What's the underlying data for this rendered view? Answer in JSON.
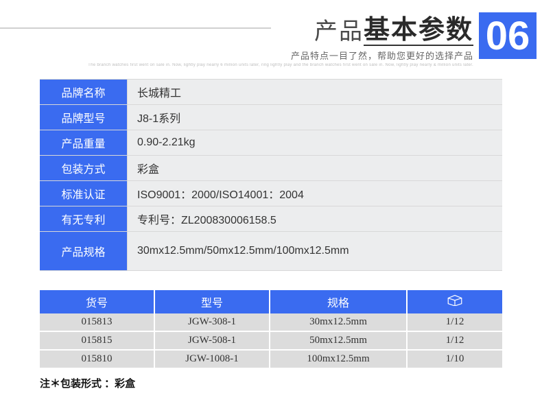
{
  "header": {
    "title_light": "产品",
    "title_bold": "基本参数",
    "subtitle": "产品特点一目了然，帮助您更好的选择产品",
    "microtext": "The branch watches first went on sale in. Now, lightly play nearly 6 million units later, ring lightly play and the branch watches first went on sale in. Now, lightly play nearly & million units later.",
    "badge": "06"
  },
  "colors": {
    "accent": "#3a6bf0",
    "row_bg": "#ecedee",
    "sku_row_bg": "#dcdcdc",
    "rule": "#d8d8d8"
  },
  "params": [
    {
      "label": "品牌名称",
      "value": "长城精工"
    },
    {
      "label": "品牌型号",
      "value": "J8-1系列"
    },
    {
      "label": "产品重量",
      "value": " 0.90-2.21kg"
    },
    {
      "label": "包装方式",
      "value": "彩盒"
    },
    {
      "label": "标准认证",
      "value": "ISO9001：2000/ISO14001：2004"
    },
    {
      "label": "有无专利",
      "value": "专利号：ZL200830006158.5"
    },
    {
      "label": "产品规格",
      "value": "30mx12.5mm/50mx12.5mm/100mx12.5mm",
      "tall": true
    }
  ],
  "sku": {
    "headers": [
      "货号",
      "型号",
      "规格",
      "__BOX__"
    ],
    "rows": [
      [
        "015813",
        "JGW-308-1",
        "30mx12.5mm",
        "1/12"
      ],
      [
        "015815",
        "JGW-508-1",
        "50mx12.5mm",
        "1/12"
      ],
      [
        "015810",
        "JGW-1008-1",
        "100mx12.5mm",
        "1/10"
      ]
    ]
  },
  "footnote": "注＊包装形式 ：彩盒"
}
